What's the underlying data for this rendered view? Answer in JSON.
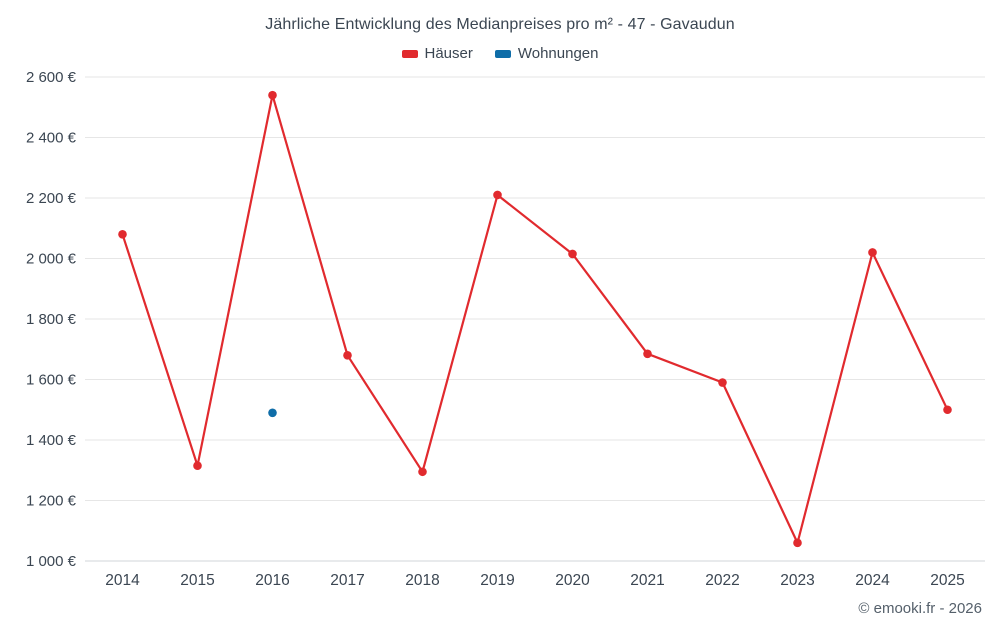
{
  "chart": {
    "title": "Jährliche Entwicklung des Medianpreises pro m² - 47 - Gavaudun",
    "credit": "© emooki.fr - 2026",
    "colors": {
      "hauser_red": "#e12a2e",
      "wohnungen_blue": "#0f6da8",
      "grid": "#e6e6e6",
      "axis_line": "#d0d4d9",
      "text": "#3b4652",
      "credit_text": "#55606b"
    }
  },
  "chart_data": {
    "type": "line",
    "x": [
      "2014",
      "2015",
      "2016",
      "2017",
      "2018",
      "2019",
      "2020",
      "2021",
      "2022",
      "2023",
      "2024",
      "2025"
    ],
    "series": [
      {
        "name": "Häuser",
        "color": "#e12a2e",
        "values": [
          2080,
          1315,
          2540,
          1680,
          1295,
          2210,
          2015,
          1685,
          1590,
          1060,
          2020,
          1500
        ]
      },
      {
        "name": "Wohnungen",
        "color": "#0f6da8",
        "values": [
          null,
          null,
          1490,
          null,
          null,
          null,
          null,
          null,
          null,
          null,
          null,
          null
        ]
      }
    ],
    "title": "Jährliche Entwicklung des Medianpreises pro m² - 47 - Gavaudun",
    "xlabel": "",
    "ylabel": "",
    "ylim": [
      1000,
      2600
    ],
    "ytick_step": 200,
    "ytick_labels": [
      "1 000 €",
      "1 200 €",
      "1 400 €",
      "1 600 €",
      "1 800 €",
      "2 000 €",
      "2 200 €",
      "2 400 €",
      "2 600 €"
    ],
    "grid": true,
    "legend_position": "top"
  }
}
